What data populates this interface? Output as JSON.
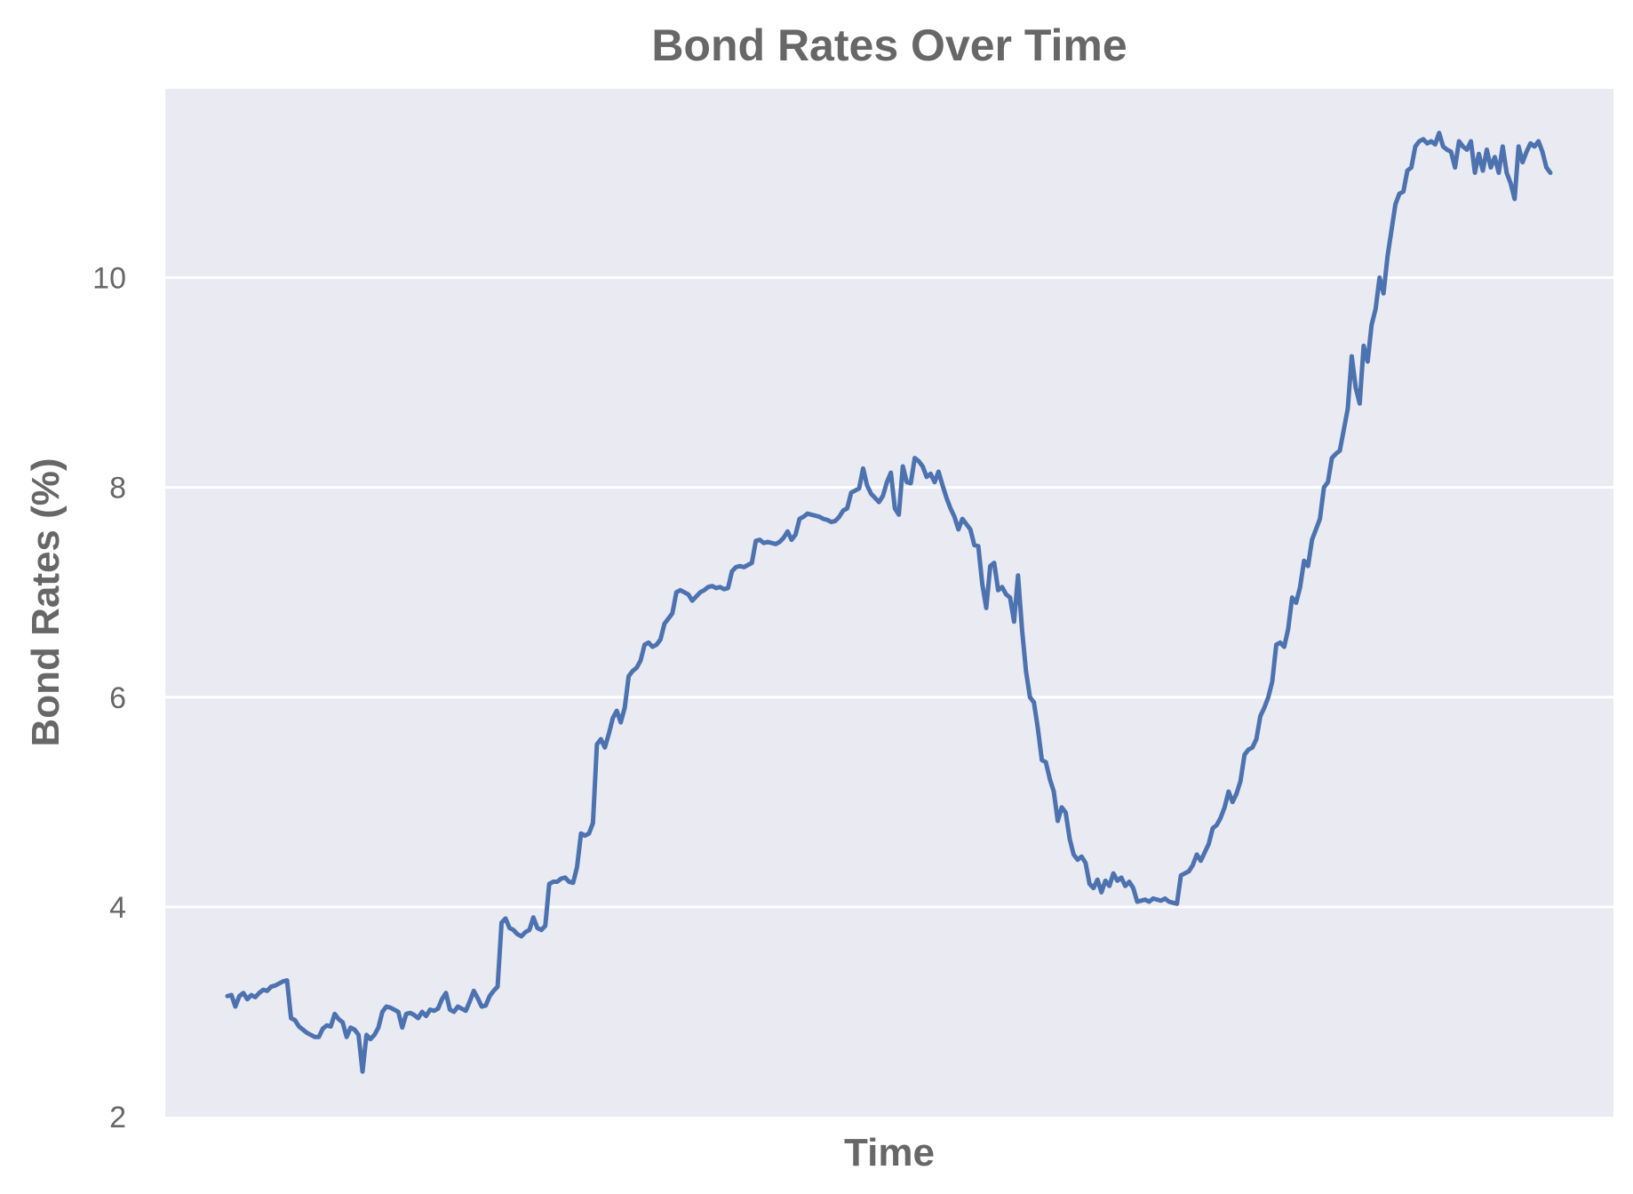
{
  "chart_data": {
    "type": "line",
    "title": "Bond Rates Over Time",
    "xlabel": "Time",
    "ylabel": "Bond Rates (%)",
    "ylim": [
      2,
      11.8
    ],
    "yticks": [
      2,
      4,
      6,
      8,
      10
    ],
    "grid": true,
    "colors": {
      "background": "#eaeaf2",
      "grid": "#ffffff",
      "line": "#4c72b0",
      "text": "#676767"
    },
    "series": [
      {
        "values": [
          3.15,
          3.16,
          3.05,
          3.15,
          3.18,
          3.12,
          3.16,
          3.14,
          3.18,
          3.21,
          3.2,
          3.24,
          3.25,
          3.27,
          3.29,
          3.3,
          2.94,
          2.92,
          2.86,
          2.83,
          2.8,
          2.78,
          2.76,
          2.76,
          2.84,
          2.87,
          2.86,
          2.98,
          2.93,
          2.9,
          2.76,
          2.85,
          2.83,
          2.78,
          2.43,
          2.78,
          2.74,
          2.78,
          2.85,
          3.0,
          3.05,
          3.04,
          3.02,
          3.0,
          2.85,
          2.98,
          2.99,
          2.97,
          2.94,
          3.0,
          2.96,
          3.02,
          3.01,
          3.03,
          3.12,
          3.18,
          3.02,
          3.0,
          3.05,
          3.03,
          3.01,
          3.1,
          3.2,
          3.13,
          3.05,
          3.06,
          3.15,
          3.2,
          3.24,
          3.85,
          3.89,
          3.8,
          3.78,
          3.74,
          3.72,
          3.76,
          3.78,
          3.9,
          3.8,
          3.78,
          3.82,
          4.22,
          4.24,
          4.24,
          4.27,
          4.28,
          4.24,
          4.23,
          4.38,
          4.7,
          4.68,
          4.7,
          4.8,
          5.55,
          5.6,
          5.52,
          5.65,
          5.8,
          5.87,
          5.76,
          5.9,
          6.2,
          6.25,
          6.28,
          6.35,
          6.5,
          6.52,
          6.48,
          6.5,
          6.55,
          6.7,
          6.75,
          6.8,
          7.0,
          7.02,
          7.0,
          6.98,
          6.92,
          6.96,
          7.0,
          7.02,
          7.05,
          7.06,
          7.04,
          7.05,
          7.03,
          7.04,
          7.2,
          7.24,
          7.25,
          7.24,
          7.26,
          7.28,
          7.49,
          7.5,
          7.47,
          7.48,
          7.47,
          7.46,
          7.48,
          7.52,
          7.58,
          7.5,
          7.55,
          7.7,
          7.72,
          7.75,
          7.74,
          7.73,
          7.72,
          7.7,
          7.69,
          7.67,
          7.68,
          7.72,
          7.78,
          7.8,
          7.95,
          7.97,
          7.99,
          8.18,
          8.02,
          7.94,
          7.9,
          7.86,
          7.92,
          8.05,
          8.14,
          7.8,
          7.74,
          8.2,
          8.05,
          8.04,
          8.28,
          8.25,
          8.2,
          8.1,
          8.13,
          8.05,
          8.15,
          8.02,
          7.9,
          7.8,
          7.72,
          7.6,
          7.7,
          7.65,
          7.6,
          7.45,
          7.44,
          7.08,
          6.85,
          7.25,
          7.28,
          7.02,
          7.05,
          6.98,
          6.95,
          6.72,
          7.16,
          6.65,
          6.25,
          6.0,
          5.95,
          5.7,
          5.4,
          5.38,
          5.22,
          5.1,
          4.82,
          4.95,
          4.9,
          4.65,
          4.5,
          4.45,
          4.48,
          4.42,
          4.22,
          4.18,
          4.26,
          4.14,
          4.25,
          4.2,
          4.32,
          4.25,
          4.28,
          4.2,
          4.24,
          4.18,
          4.05,
          4.06,
          4.07,
          4.05,
          4.08,
          4.07,
          4.06,
          4.08,
          4.05,
          4.04,
          4.03,
          4.3,
          4.32,
          4.34,
          4.4,
          4.5,
          4.44,
          4.52,
          4.6,
          4.75,
          4.78,
          4.85,
          4.95,
          5.1,
          5.0,
          5.08,
          5.2,
          5.45,
          5.5,
          5.52,
          5.6,
          5.82,
          5.9,
          6.0,
          6.15,
          6.5,
          6.52,
          6.48,
          6.65,
          6.95,
          6.9,
          7.05,
          7.3,
          7.25,
          7.5,
          7.6,
          7.7,
          8.0,
          8.05,
          8.28,
          8.32,
          8.35,
          8.55,
          8.75,
          9.25,
          8.95,
          8.8,
          9.35,
          9.2,
          9.55,
          9.7,
          10.0,
          9.85,
          10.2,
          10.45,
          10.7,
          10.8,
          10.82,
          11.02,
          11.05,
          11.25,
          11.3,
          11.32,
          11.28,
          11.3,
          11.27,
          11.38,
          11.25,
          11.22,
          11.2,
          11.05,
          11.3,
          11.25,
          11.22,
          11.3,
          11.0,
          11.18,
          11.02,
          11.22,
          11.05,
          11.15,
          11.0,
          11.25,
          11.0,
          10.9,
          10.75,
          11.25,
          11.1,
          11.2,
          11.28,
          11.25,
          11.3,
          11.2,
          11.05,
          11.0
        ]
      }
    ]
  }
}
